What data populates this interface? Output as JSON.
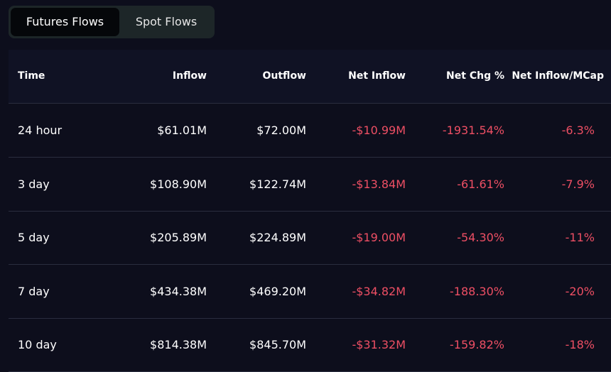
{
  "tabs": [
    "Futures Flows",
    "Spot Flows"
  ],
  "table": {
    "headers": [
      "Time",
      "Inflow",
      "Outflow",
      "Net Inflow",
      "Net Chg %",
      "Net Inflow/MCap"
    ],
    "rows": [
      [
        "24 hour",
        "$61.01M",
        "$72.00M",
        "-$10.99M",
        "-1931.54%",
        "-6.3%"
      ],
      [
        "3 day",
        "$108.90M",
        "$122.74M",
        "-$13.84M",
        "-61.61%",
        "-7.9%"
      ],
      [
        "5 day",
        "$205.89M",
        "$224.89M",
        "-$19.00M",
        "-54.30%",
        "-11%"
      ],
      [
        "7 day",
        "$434.38M",
        "$469.20M",
        "-$34.82M",
        "-188.30%",
        "-20%"
      ],
      [
        "10 day",
        "$814.38M",
        "$845.70M",
        "-$31.32M",
        "-159.82%",
        "-18%"
      ]
    ]
  }
}
